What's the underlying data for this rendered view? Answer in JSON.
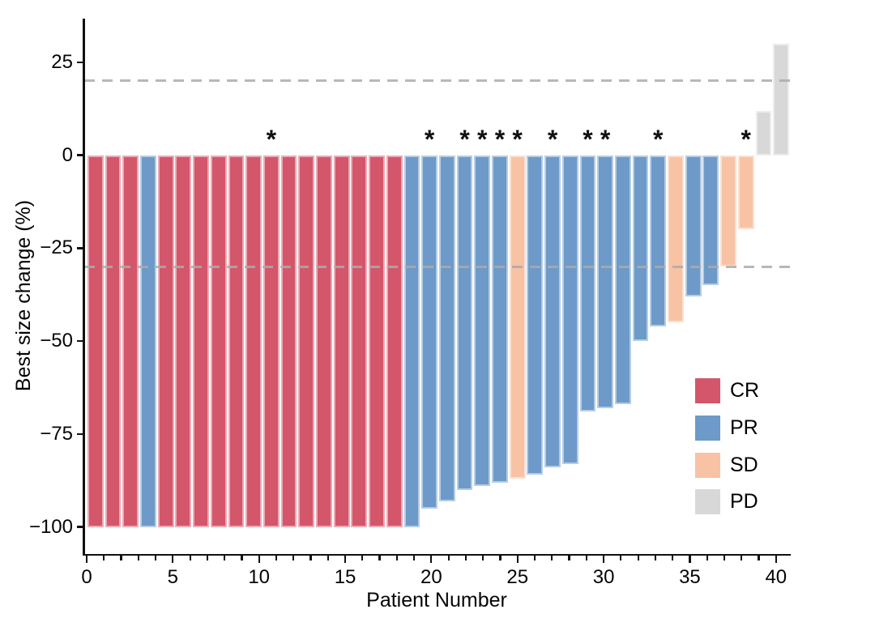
{
  "chart_data": {
    "type": "bar",
    "subtype": "waterfall",
    "title": "",
    "xlabel": "Patient Number",
    "ylabel": "Best size change (%)",
    "x_ticks_major": [
      0,
      5,
      10,
      15,
      20,
      25,
      30,
      35,
      40
    ],
    "x_minor_step": 1,
    "x_max": 40,
    "y_ticks": [
      25,
      0,
      -25,
      -50,
      -75,
      -100
    ],
    "ylim": [
      -107,
      38
    ],
    "xlim": [
      0,
      41
    ],
    "grid": "off",
    "reference_lines": [
      20,
      -30
    ],
    "reference_line_color": "#ABABAB",
    "axis_color": "#111111",
    "legend_position": "inside-right",
    "legend": [
      {
        "label": "CR",
        "color": "#D4566B"
      },
      {
        "label": "PR",
        "color": "#6D9AC8"
      },
      {
        "label": "SD",
        "color": "#F7C3A4"
      },
      {
        "label": "PD",
        "color": "#D8D8D8"
      }
    ],
    "categories": [
      1,
      2,
      3,
      4,
      5,
      6,
      7,
      8,
      9,
      10,
      11,
      12,
      13,
      14,
      15,
      16,
      17,
      18,
      19,
      20,
      21,
      22,
      23,
      24,
      25,
      26,
      27,
      28,
      29,
      30,
      31,
      32,
      33,
      34,
      35,
      36,
      37,
      38,
      39,
      40
    ],
    "patients": [
      {
        "n": 1,
        "value": -100,
        "group": "CR",
        "star": false
      },
      {
        "n": 2,
        "value": -100,
        "group": "CR",
        "star": false
      },
      {
        "n": 3,
        "value": -100,
        "group": "CR",
        "star": false
      },
      {
        "n": 4,
        "value": -100,
        "group": "PR",
        "star": false
      },
      {
        "n": 5,
        "value": -100,
        "group": "CR",
        "star": false
      },
      {
        "n": 6,
        "value": -100,
        "group": "CR",
        "star": false
      },
      {
        "n": 7,
        "value": -100,
        "group": "CR",
        "star": false
      },
      {
        "n": 8,
        "value": -100,
        "group": "CR",
        "star": false
      },
      {
        "n": 9,
        "value": -100,
        "group": "CR",
        "star": false
      },
      {
        "n": 10,
        "value": -100,
        "group": "CR",
        "star": false
      },
      {
        "n": 11,
        "value": -100,
        "group": "CR",
        "star": true
      },
      {
        "n": 12,
        "value": -100,
        "group": "CR",
        "star": false
      },
      {
        "n": 13,
        "value": -100,
        "group": "CR",
        "star": false
      },
      {
        "n": 14,
        "value": -100,
        "group": "CR",
        "star": false
      },
      {
        "n": 15,
        "value": -100,
        "group": "CR",
        "star": false
      },
      {
        "n": 16,
        "value": -100,
        "group": "CR",
        "star": false
      },
      {
        "n": 17,
        "value": -100,
        "group": "CR",
        "star": false
      },
      {
        "n": 18,
        "value": -100,
        "group": "CR",
        "star": false
      },
      {
        "n": 19,
        "value": -100,
        "group": "PR",
        "star": false
      },
      {
        "n": 20,
        "value": -95,
        "group": "PR",
        "star": true
      },
      {
        "n": 21,
        "value": -93,
        "group": "PR",
        "star": false
      },
      {
        "n": 22,
        "value": -90,
        "group": "PR",
        "star": true
      },
      {
        "n": 23,
        "value": -89,
        "group": "PR",
        "star": true
      },
      {
        "n": 24,
        "value": -88,
        "group": "PR",
        "star": true
      },
      {
        "n": 25,
        "value": -87,
        "group": "SD",
        "star": true
      },
      {
        "n": 26,
        "value": -86,
        "group": "PR",
        "star": false
      },
      {
        "n": 27,
        "value": -84,
        "group": "PR",
        "star": true
      },
      {
        "n": 28,
        "value": -83,
        "group": "PR",
        "star": false
      },
      {
        "n": 29,
        "value": -69,
        "group": "PR",
        "star": true
      },
      {
        "n": 30,
        "value": -68,
        "group": "PR",
        "star": true
      },
      {
        "n": 31,
        "value": -67,
        "group": "PR",
        "star": false
      },
      {
        "n": 32,
        "value": -50,
        "group": "PR",
        "star": false
      },
      {
        "n": 33,
        "value": -46,
        "group": "PR",
        "star": true
      },
      {
        "n": 34,
        "value": -45,
        "group": "SD",
        "star": false
      },
      {
        "n": 35,
        "value": -38,
        "group": "PR",
        "star": false
      },
      {
        "n": 36,
        "value": -35,
        "group": "PR",
        "star": false
      },
      {
        "n": 37,
        "value": -30,
        "group": "SD",
        "star": false
      },
      {
        "n": 38,
        "value": -20,
        "group": "SD",
        "star": true
      },
      {
        "n": 39,
        "value": 12,
        "group": "PD",
        "star": false
      },
      {
        "n": 40,
        "value": 30,
        "group": "PD",
        "star": false
      }
    ]
  }
}
